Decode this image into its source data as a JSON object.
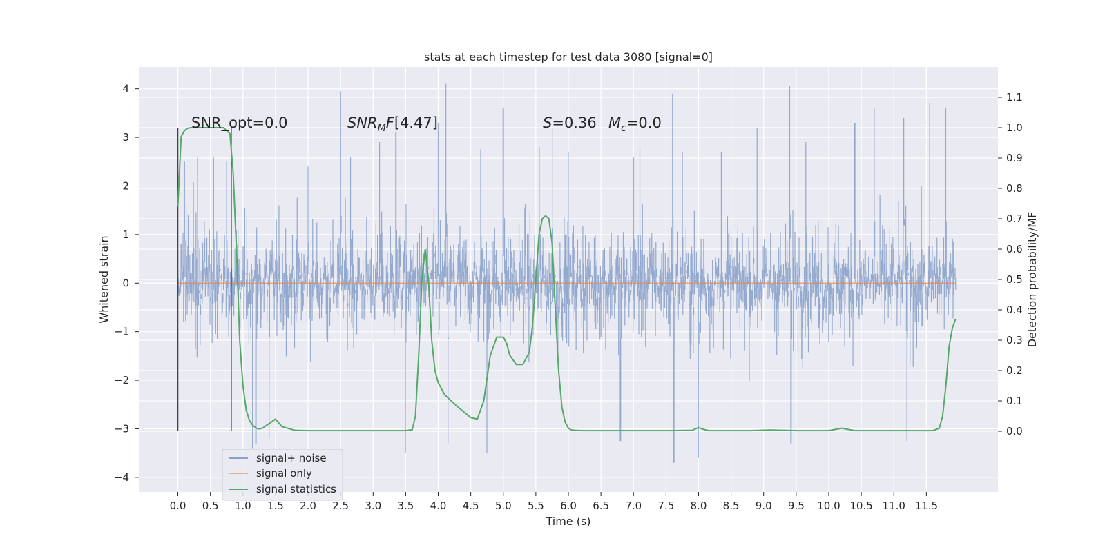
{
  "chart_data": {
    "type": "line",
    "title": "stats at each timestep for test data 3080 [signal=0]",
    "xlabel": "Time (s)",
    "ylabel_left": "Whitened strain",
    "ylabel_right": "Detection probability/MF",
    "xlim": [
      -0.6,
      12.6
    ],
    "ylim_left": [
      -4.3,
      4.45
    ],
    "ylim_right": [
      -0.2,
      1.2
    ],
    "x_ticks": [
      "0.0",
      "0.5",
      "1.0",
      "1.5",
      "2.0",
      "2.5",
      "3.0",
      "3.5",
      "4.0",
      "4.5",
      "5.0",
      "5.5",
      "6.0",
      "6.5",
      "7.0",
      "7.5",
      "8.0",
      "8.5",
      "9.0",
      "9.5",
      "10.0",
      "10.5",
      "11.0",
      "11.5"
    ],
    "y_ticks_left": [
      "4",
      "3",
      "2",
      "1",
      "0",
      "−1",
      "−2",
      "−3",
      "−4"
    ],
    "y_ticks_right": [
      "1.1",
      "1.0",
      "0.9",
      "0.8",
      "0.7",
      "0.6",
      "0.5",
      "0.4",
      "0.3",
      "0.2",
      "0.1",
      "0.0"
    ],
    "grid": true,
    "legend_position": "lower-left",
    "colors": {
      "noise": "#4c72b0",
      "signal_only": "#dd8452",
      "statistics": "#55a868",
      "background": "#eaeaf2",
      "marker": "#444444"
    },
    "annotations": {
      "snr_opt": "SNR_opt=0.0",
      "snr_mf": "[4.47]",
      "s_label": "=0.36",
      "mc_label": "=0.0"
    },
    "marker_lines_x": [
      0.0,
      0.82
    ],
    "series": [
      {
        "name": "signal+ noise",
        "axis": "left",
        "description_range": "noise envelope",
        "x": [
          0.0,
          11.95
        ],
        "peak_values": [
          [
            0.1,
            2.5
          ],
          [
            0.3,
            2.6
          ],
          [
            0.55,
            2.6
          ],
          [
            0.75,
            2.5
          ],
          [
            1.15,
            -3.4
          ],
          [
            1.2,
            -3.3
          ],
          [
            1.4,
            -3.2
          ],
          [
            2.0,
            2.4
          ],
          [
            2.5,
            3.95
          ],
          [
            2.65,
            2.6
          ],
          [
            3.1,
            2.9
          ],
          [
            3.35,
            3.1
          ],
          [
            3.5,
            -3.5
          ],
          [
            4.0,
            3.3
          ],
          [
            4.12,
            4.1
          ],
          [
            4.15,
            -3.3
          ],
          [
            4.65,
            2.75
          ],
          [
            4.75,
            -3.5
          ],
          [
            5.0,
            3.6
          ],
          [
            5.55,
            2.8
          ],
          [
            5.75,
            3.2
          ],
          [
            6.0,
            2.7
          ],
          [
            6.8,
            -3.25
          ],
          [
            7.0,
            2.6
          ],
          [
            7.1,
            2.8
          ],
          [
            7.6,
            3.9
          ],
          [
            7.62,
            -3.7
          ],
          [
            7.75,
            2.7
          ],
          [
            8.0,
            -3.6
          ],
          [
            8.35,
            2.7
          ],
          [
            8.9,
            3.2
          ],
          [
            9.4,
            4.05
          ],
          [
            9.42,
            -3.3
          ],
          [
            9.65,
            2.9
          ],
          [
            10.4,
            3.3
          ],
          [
            10.7,
            3.6
          ],
          [
            11.15,
            3.4
          ],
          [
            11.2,
            -3.25
          ],
          [
            11.55,
            3.7
          ],
          [
            11.8,
            3.6
          ]
        ]
      },
      {
        "name": "signal only",
        "axis": "left",
        "x": [
          0.0,
          11.95
        ],
        "values": [
          0.0,
          0.0
        ]
      },
      {
        "name": "signal statistics",
        "axis": "right",
        "x": [
          0.0,
          0.05,
          0.1,
          0.15,
          0.2,
          0.3,
          0.4,
          0.5,
          0.6,
          0.7,
          0.8,
          0.85,
          0.9,
          0.95,
          1.0,
          1.05,
          1.1,
          1.15,
          1.2,
          1.25,
          1.3,
          1.4,
          1.5,
          1.6,
          1.8,
          2.0,
          2.5,
          3.0,
          3.5,
          3.6,
          3.65,
          3.7,
          3.75,
          3.8,
          3.85,
          3.9,
          3.95,
          4.0,
          4.1,
          4.3,
          4.5,
          4.6,
          4.7,
          4.8,
          4.9,
          5.0,
          5.05,
          5.1,
          5.2,
          5.3,
          5.4,
          5.45,
          5.5,
          5.55,
          5.6,
          5.65,
          5.7,
          5.75,
          5.8,
          5.85,
          5.9,
          5.95,
          6.0,
          6.05,
          6.1,
          6.2,
          6.4,
          6.8,
          7.2,
          7.6,
          7.9,
          8.0,
          8.05,
          8.15,
          8.4,
          8.8,
          9.1,
          9.5,
          10.0,
          10.2,
          10.4,
          10.8,
          11.2,
          11.6,
          11.7,
          11.75,
          11.8,
          11.85,
          11.9,
          11.95
        ],
        "values": [
          0.74,
          0.97,
          0.99,
          0.998,
          1.0,
          1.0,
          1.0,
          1.0,
          1.0,
          1.0,
          0.98,
          0.85,
          0.6,
          0.3,
          0.15,
          0.07,
          0.035,
          0.02,
          0.01,
          0.008,
          0.01,
          0.025,
          0.04,
          0.015,
          0.003,
          0.002,
          0.002,
          0.002,
          0.002,
          0.005,
          0.05,
          0.25,
          0.5,
          0.6,
          0.5,
          0.3,
          0.2,
          0.16,
          0.12,
          0.08,
          0.045,
          0.04,
          0.1,
          0.25,
          0.31,
          0.31,
          0.29,
          0.25,
          0.22,
          0.22,
          0.26,
          0.35,
          0.5,
          0.65,
          0.7,
          0.71,
          0.7,
          0.62,
          0.4,
          0.2,
          0.08,
          0.03,
          0.01,
          0.004,
          0.003,
          0.002,
          0.002,
          0.002,
          0.002,
          0.002,
          0.003,
          0.012,
          0.008,
          0.002,
          0.002,
          0.002,
          0.004,
          0.002,
          0.002,
          0.01,
          0.002,
          0.002,
          0.002,
          0.002,
          0.01,
          0.05,
          0.15,
          0.28,
          0.34,
          0.37
        ]
      }
    ]
  }
}
